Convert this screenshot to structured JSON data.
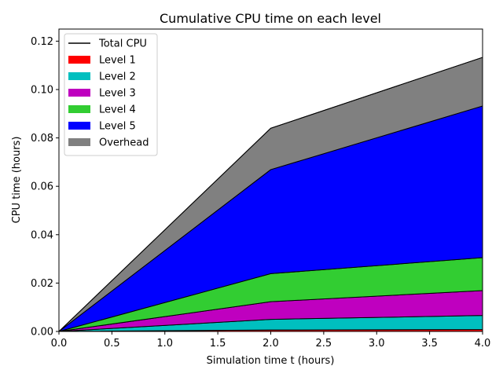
{
  "chart_data": {
    "type": "area",
    "stacked": true,
    "title": "Cumulative CPU time on each level",
    "xlabel": "Simulation time t (hours)",
    "ylabel": "CPU time (hours)",
    "xlim": [
      0.0,
      4.0
    ],
    "ylim": [
      0.0,
      0.125
    ],
    "xticks": [
      "0.0",
      "0.5",
      "1.0",
      "1.5",
      "2.0",
      "2.5",
      "3.0",
      "3.5",
      "4.0"
    ],
    "yticks": [
      "0.00",
      "0.02",
      "0.04",
      "0.06",
      "0.08",
      "0.10",
      "0.12"
    ],
    "x": [
      0.0,
      2.0,
      4.0
    ],
    "series": [
      {
        "name": "Level 1",
        "color": "#ff0000",
        "values": [
          0.0,
          0.0006,
          0.0008
        ]
      },
      {
        "name": "Level 2",
        "color": "#00bfbf",
        "values": [
          0.0,
          0.0044,
          0.0058
        ]
      },
      {
        "name": "Level 3",
        "color": "#bf00bf",
        "values": [
          0.0,
          0.0073,
          0.0103
        ]
      },
      {
        "name": "Level 4",
        "color": "#32cd32",
        "values": [
          0.0,
          0.0116,
          0.0136
        ]
      },
      {
        "name": "Level 5",
        "color": "#0000ff",
        "values": [
          0.0,
          0.043,
          0.0627
        ]
      },
      {
        "name": "Overhead",
        "color": "#808080",
        "values": [
          0.0,
          0.0171,
          0.0201
        ]
      }
    ],
    "total_line": {
      "name": "Total CPU",
      "color": "#000000",
      "values": [
        0.0,
        0.084,
        0.1133
      ]
    },
    "legend_position": "top-left",
    "grid": false
  }
}
